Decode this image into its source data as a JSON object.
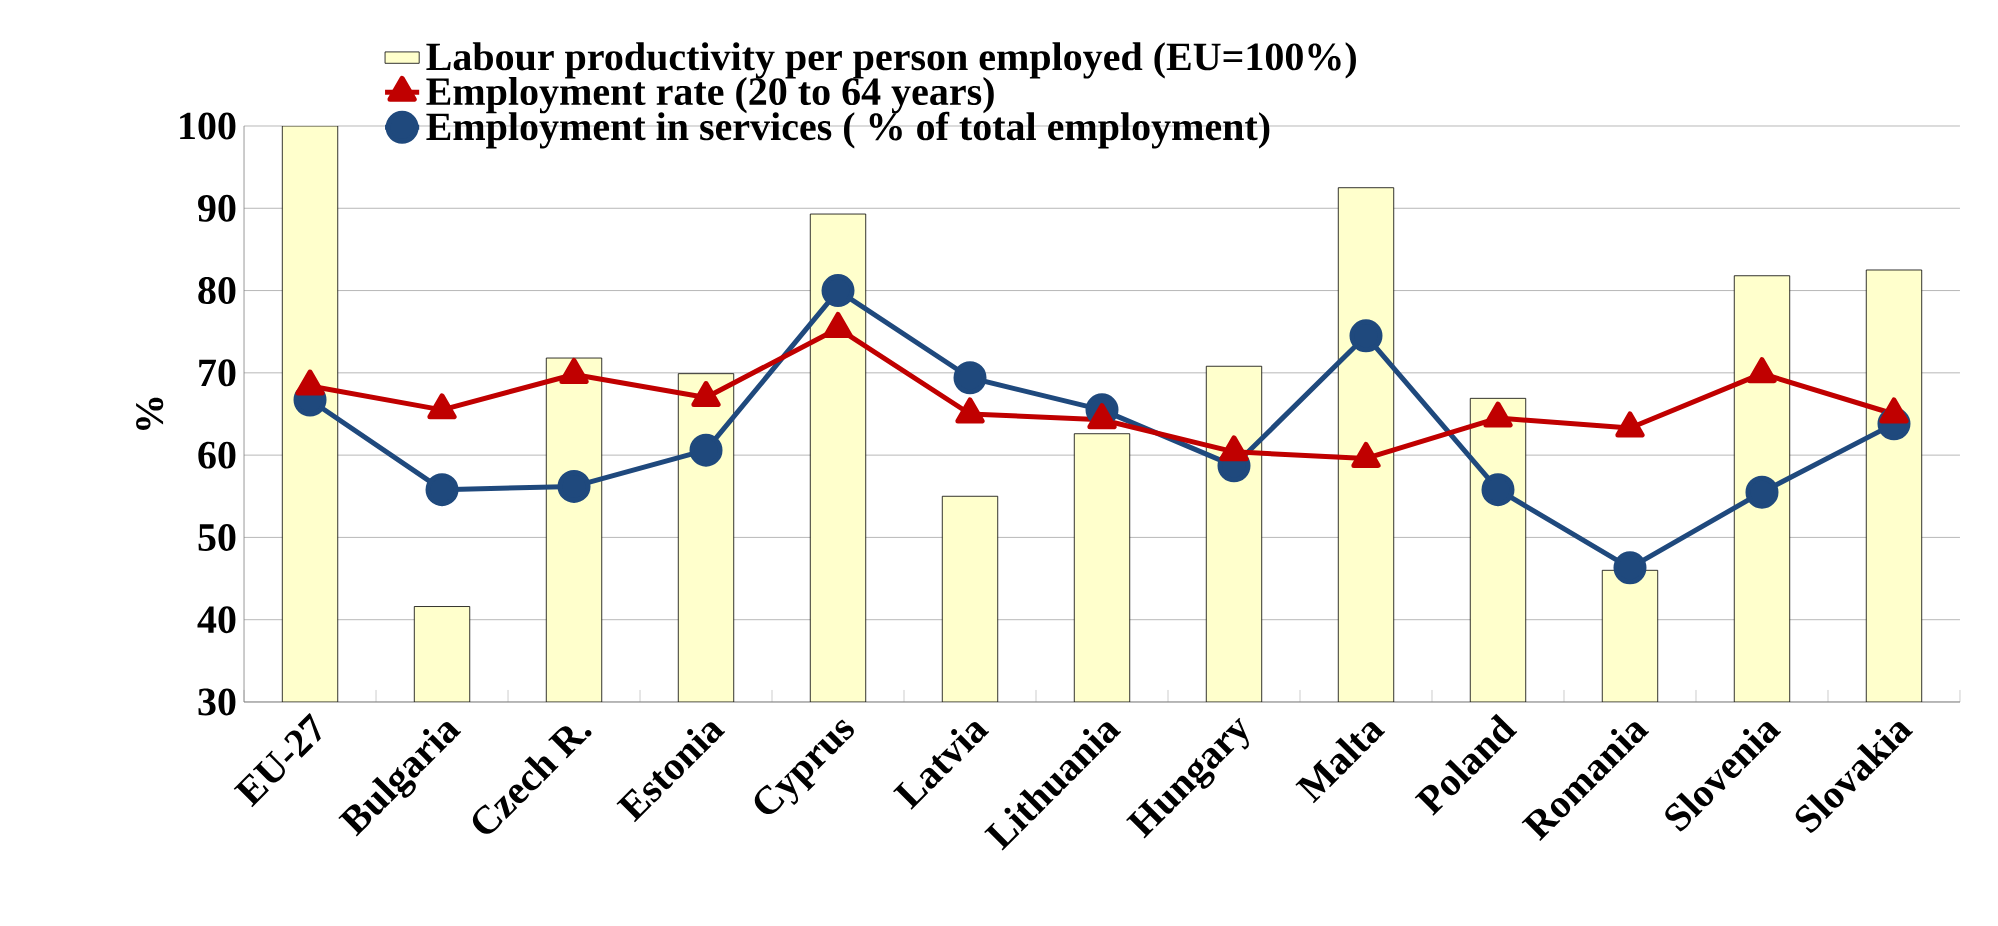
{
  "chart_data": {
    "type": "bar",
    "ylabel": "%",
    "categories": [
      "EU-27",
      "Bulgaria",
      "Czech R.",
      "Estonia",
      "Cyprus",
      "Latvia",
      "Lithuania",
      "Hungary",
      "Malta",
      "Poland",
      "Romania",
      "Slovenia",
      "Slovakia"
    ],
    "series": [
      {
        "name": "Labour productivity per person employed (EU=100%)",
        "color": "#ffffcc",
        "values": [
          100,
          41.6,
          71.8,
          69.9,
          89.3,
          55.0,
          62.6,
          70.8,
          92.5,
          66.9,
          46,
          81.8,
          82.5
        ]
      },
      {
        "name": "Employment rate (20 to 64 years)",
        "type": "line",
        "marker": "triangle",
        "color": "#c00000",
        "values": [
          68.4,
          65.5,
          69.8,
          67,
          75.4,
          65,
          64.3,
          60.4,
          59.6,
          64.5,
          63.3,
          69.9,
          65
        ]
      },
      {
        "name": "Employment in services ( % of total employment)",
        "type": "line",
        "marker": "circle",
        "color": "#1f497d",
        "values": [
          66.7,
          55.8,
          56.2,
          60.6,
          80,
          69.4,
          65.5,
          58.7,
          74.5,
          55.8,
          46.3,
          55.5,
          63.8
        ]
      }
    ],
    "ylim": [
      30,
      100
    ],
    "yticks": [
      30,
      40,
      50,
      60,
      70,
      80,
      90,
      100
    ],
    "grid": "y",
    "legend": "top"
  }
}
